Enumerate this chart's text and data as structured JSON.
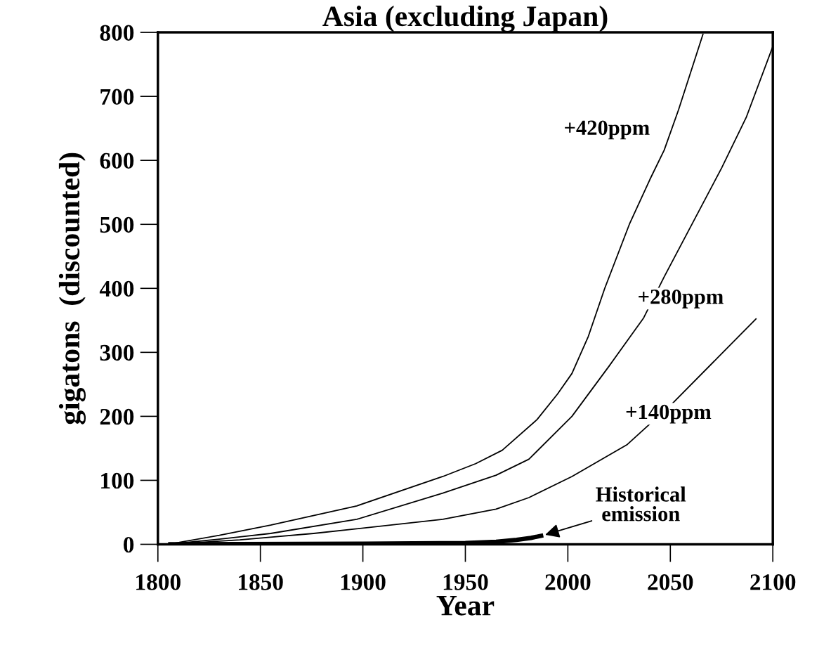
{
  "chart_data": {
    "type": "line",
    "title": "Asia (excluding Japan)",
    "xlabel": "Year",
    "ylabel": "gigatons  (discounted)",
    "xlim": [
      1800,
      2100
    ],
    "xticks": [
      1800,
      1850,
      1900,
      1950,
      2000,
      2050,
      2100
    ],
    "ylim": [
      0,
      800
    ],
    "yticks": [
      0,
      100,
      200,
      300,
      400,
      500,
      600,
      700,
      800
    ],
    "grid": false,
    "legend": false,
    "marker": "none",
    "line_style": "solid",
    "series": [
      {
        "name": "+420ppm",
        "color": "#000000",
        "x": [
          1805,
          1830,
          1855,
          1897,
          1939,
          1955,
          1968,
          1985,
          1995,
          2002,
          2010,
          2018,
          2030,
          2040,
          2047,
          2054,
          2066
        ],
        "values": [
          0,
          14,
          30,
          60,
          106,
          126,
          147,
          195,
          235,
          267,
          325,
          400,
          500,
          570,
          616,
          679,
          798
        ]
      },
      {
        "name": "+280ppm",
        "color": "#000000",
        "x": [
          1805,
          1830,
          1855,
          1897,
          1939,
          1965,
          1981,
          2002,
          2020,
          2037,
          2047,
          2075,
          2087,
          2100
        ],
        "values": [
          0,
          8,
          17,
          39,
          80,
          108,
          133,
          200,
          278,
          354,
          418,
          588,
          667,
          778
        ]
      },
      {
        "name": "+140ppm",
        "color": "#000000",
        "x": [
          1805,
          1840,
          1876,
          1939,
          1965,
          1981,
          2002,
          2029,
          2051,
          2092
        ],
        "values": [
          0,
          7,
          17,
          39,
          55,
          73,
          106,
          156,
          220,
          353
        ]
      },
      {
        "color": "#000000",
        "x": [
          1805,
          1900,
          1950,
          1965,
          1975,
          1982,
          1988
        ],
        "values": [
          0,
          1,
          2,
          4,
          7,
          10,
          14
        ]
      }
    ],
    "annotations": [
      {
        "text": "Historical\nemission",
        "x": 1988,
        "y": 14
      }
    ]
  }
}
